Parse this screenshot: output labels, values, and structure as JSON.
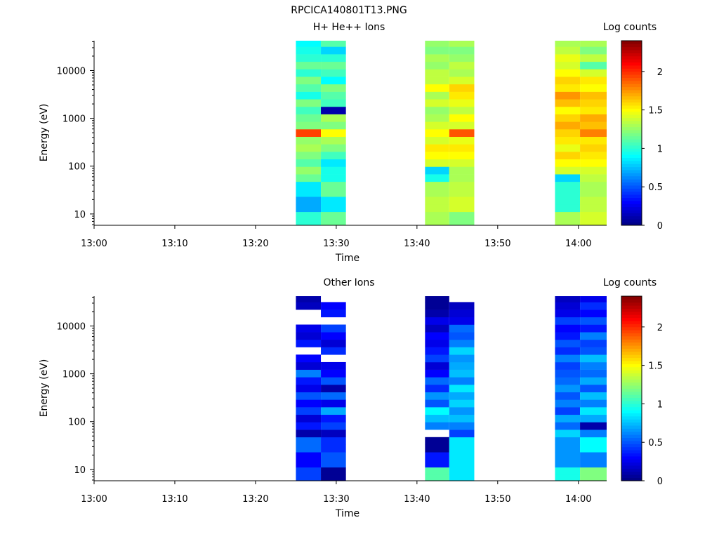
{
  "title": "RPCICA140801T13.PNG",
  "chart_data": [
    {
      "type": "heatmap",
      "title": "H+ He++ Ions",
      "xlabel": "Time",
      "ylabel": "Energy (eV)",
      "x_ticks": [
        "13:00",
        "13:10",
        "13:20",
        "13:30",
        "13:40",
        "13:50",
        "14:00"
      ],
      "x_range": [
        "13:00",
        "14:03.5"
      ],
      "y_scale": "log",
      "y_ticks": [
        "10",
        "100",
        "1000",
        "10000"
      ],
      "y_range": [
        5.8,
        42000
      ],
      "colorbar": {
        "label": "Log counts",
        "range": [
          0,
          2.4
        ],
        "ticks": [
          "0",
          "0.5",
          "1",
          "1.5",
          "2"
        ]
      },
      "blocks": [
        {
          "t_start": "13:25.0",
          "t_end": "13:28.1",
          "energy_rows": [
            6.6,
            9.2,
            13.4,
            19.2,
            27.6,
            39.6,
            56.8,
            81.5,
            117,
            168,
            241,
            346,
            496,
            712,
            1021,
            1466,
            2104,
            3019,
            4333,
            6218,
            8924,
            12807,
            18380,
            26378,
            37857
          ],
          "log_counts": [
            1.0,
            1.0,
            0.7,
            0.7,
            0.85,
            0.85,
            1.15,
            1.25,
            1.1,
            1.2,
            1.3,
            1.25,
            1.95,
            1.2,
            1.15,
            1.05,
            1.2,
            0.95,
            1.1,
            1.2,
            1.0,
            1.15,
            1.0,
            0.95,
            0.9
          ]
        },
        {
          "t_start": "13:28.1",
          "t_end": "13:31.2",
          "energy_rows": [
            6.6,
            9.2,
            13.4,
            19.2,
            27.6,
            39.6,
            56.8,
            81.5,
            117,
            168,
            241,
            346,
            496,
            712,
            1021,
            1466,
            2104,
            3019,
            4333,
            6218,
            8924,
            12807,
            18380,
            26378,
            37857
          ],
          "log_counts": [
            1.15,
            1.15,
            0.85,
            0.85,
            1.15,
            1.15,
            0.95,
            0.95,
            0.85,
            1.05,
            1.2,
            1.3,
            1.5,
            1.2,
            1.3,
            0.1,
            1.05,
            1.1,
            1.2,
            0.9,
            1.05,
            1.15,
            1.0,
            0.8,
            1.1
          ]
        },
        {
          "t_start": "13:41.0",
          "t_end": "13:44.0",
          "energy_rows": [
            6.6,
            9.2,
            13.4,
            19.2,
            27.6,
            39.6,
            56.8,
            81.5,
            117,
            168,
            241,
            346,
            496,
            712,
            1021,
            1466,
            2104,
            3019,
            4333,
            6218,
            8924,
            12807,
            18380,
            26378,
            37857
          ],
          "log_counts": [
            1.3,
            1.3,
            1.35,
            1.35,
            1.3,
            1.3,
            0.95,
            0.8,
            1.4,
            1.5,
            1.55,
            1.4,
            1.5,
            1.4,
            1.3,
            1.25,
            1.4,
            1.3,
            1.5,
            1.35,
            1.35,
            1.25,
            1.3,
            1.2,
            1.25
          ]
        },
        {
          "t_start": "13:44.0",
          "t_end": "13:47.1",
          "energy_rows": [
            6.6,
            9.2,
            13.4,
            19.2,
            27.6,
            39.6,
            56.8,
            81.5,
            117,
            168,
            241,
            346,
            496,
            712,
            1021,
            1466,
            2104,
            3019,
            4333,
            6218,
            8924,
            12807,
            18380,
            26378,
            37857
          ],
          "log_counts": [
            1.2,
            1.2,
            1.4,
            1.4,
            1.35,
            1.35,
            1.3,
            1.3,
            1.4,
            1.5,
            1.55,
            1.45,
            1.9,
            1.4,
            1.5,
            1.35,
            1.45,
            1.55,
            1.6,
            1.4,
            1.3,
            1.35,
            1.25,
            1.2,
            1.3
          ]
        },
        {
          "t_start": "13:57.1",
          "t_end": "14:00.2",
          "energy_rows": [
            6.6,
            9.2,
            13.4,
            19.2,
            27.6,
            39.6,
            56.8,
            81.5,
            117,
            168,
            241,
            346,
            496,
            712,
            1021,
            1466,
            2104,
            3019,
            4333,
            6218,
            8924,
            12807,
            18380,
            26378,
            37857
          ],
          "log_counts": [
            1.3,
            1.3,
            1.0,
            1.0,
            1.0,
            1.0,
            0.8,
            1.4,
            1.5,
            1.6,
            1.45,
            1.55,
            1.6,
            1.7,
            1.6,
            1.5,
            1.65,
            1.75,
            1.55,
            1.6,
            1.5,
            1.4,
            1.45,
            1.35,
            1.3
          ]
        },
        {
          "t_start": "14:00.2",
          "t_end": "14:03.5",
          "energy_rows": [
            6.6,
            9.2,
            13.4,
            19.2,
            27.6,
            39.6,
            56.8,
            81.5,
            117,
            168,
            241,
            346,
            496,
            712,
            1021,
            1466,
            2104,
            3019,
            4333,
            6218,
            8924,
            12807,
            18380,
            26378,
            37857
          ],
          "log_counts": [
            1.4,
            1.4,
            1.35,
            1.35,
            1.3,
            1.3,
            1.35,
            1.4,
            1.5,
            1.55,
            1.6,
            1.55,
            1.8,
            1.65,
            1.7,
            1.55,
            1.6,
            1.65,
            1.5,
            1.55,
            1.4,
            1.1,
            1.35,
            1.2,
            1.3
          ]
        }
      ]
    },
    {
      "type": "heatmap",
      "title": "Other Ions",
      "xlabel": "Time",
      "ylabel": "Energy (eV)",
      "x_ticks": [
        "13:00",
        "13:10",
        "13:20",
        "13:30",
        "13:40",
        "13:50",
        "14:00"
      ],
      "x_range": [
        "13:00",
        "14:03.5"
      ],
      "y_scale": "log",
      "y_ticks": [
        "10",
        "100",
        "1000",
        "10000"
      ],
      "y_range": [
        5.8,
        42000
      ],
      "colorbar": {
        "label": "Log counts",
        "range": [
          0,
          2.4
        ],
        "ticks": [
          "0",
          "0.5",
          "1",
          "1.5",
          "2"
        ]
      },
      "blocks": [
        {
          "t_start": "13:25.0",
          "t_end": "13:28.1",
          "energy_rows": [
            6.6,
            9.2,
            13.4,
            19.2,
            27.6,
            39.6,
            56.8,
            81.5,
            117,
            168,
            241,
            346,
            496,
            712,
            1021,
            1466,
            2104,
            3019,
            4333,
            6218,
            8924,
            12807,
            18380,
            26378,
            37857
          ],
          "log_counts": [
            0.45,
            0.45,
            0.3,
            0.3,
            0.55,
            0.55,
            0.1,
            0.35,
            0.2,
            0.45,
            0.3,
            0.5,
            0.25,
            0.35,
            0.6,
            0.2,
            0.3,
            null,
            0.35,
            0.2,
            0.25,
            null,
            null,
            0.15,
            0.1
          ]
        },
        {
          "t_start": "13:28.1",
          "t_end": "13:31.2",
          "energy_rows": [
            6.6,
            9.2,
            13.4,
            19.2,
            27.6,
            39.6,
            56.8,
            81.5,
            117,
            168,
            241,
            346,
            496,
            712,
            1021,
            1466,
            2104,
            3019,
            4333,
            6218,
            8924,
            12807,
            18380,
            26378,
            37857
          ],
          "log_counts": [
            0.05,
            0.05,
            0.5,
            0.5,
            0.4,
            0.4,
            0.15,
            0.45,
            0.35,
            0.7,
            0.25,
            0.55,
            0.1,
            0.5,
            0.3,
            0.25,
            null,
            0.4,
            0.2,
            0.3,
            0.45,
            null,
            0.35,
            0.3,
            null
          ]
        },
        {
          "t_start": "13:41.0",
          "t_end": "13:44.0",
          "energy_rows": [
            6.6,
            9.2,
            13.4,
            19.2,
            27.6,
            39.6,
            56.8,
            81.5,
            117,
            168,
            241,
            346,
            496,
            712,
            1021,
            1466,
            2104,
            3019,
            4333,
            6218,
            8924,
            12807,
            18380,
            26378,
            37857
          ],
          "log_counts": [
            1.1,
            1.1,
            0.35,
            0.35,
            0.05,
            0.05,
            null,
            0.6,
            0.75,
            0.9,
            0.5,
            0.65,
            0.4,
            0.55,
            0.3,
            0.2,
            0.45,
            0.35,
            0.25,
            0.3,
            0.15,
            0.25,
            0.1,
            0.05,
            0.05
          ]
        },
        {
          "t_start": "13:44.0",
          "t_end": "13:47.1",
          "energy_rows": [
            6.6,
            9.2,
            13.4,
            19.2,
            27.6,
            39.6,
            56.8,
            81.5,
            117,
            168,
            241,
            346,
            496,
            712,
            1021,
            1466,
            2104,
            3019,
            4333,
            6218,
            8924,
            12807,
            18380,
            26378,
            37857
          ],
          "log_counts": [
            0.85,
            0.85,
            0.85,
            0.85,
            0.85,
            0.85,
            0.45,
            0.6,
            0.75,
            0.65,
            0.8,
            0.7,
            0.85,
            0.6,
            0.75,
            0.7,
            0.65,
            0.8,
            0.6,
            0.5,
            0.55,
            0.25,
            0.2,
            0.15,
            null
          ]
        },
        {
          "t_start": "13:57.1",
          "t_end": "14:00.2",
          "energy_rows": [
            6.6,
            9.2,
            13.4,
            19.2,
            27.6,
            39.6,
            56.8,
            81.5,
            117,
            168,
            241,
            346,
            496,
            712,
            1021,
            1466,
            2104,
            3019,
            4333,
            6218,
            8924,
            12807,
            18380,
            26378,
            37857
          ],
          "log_counts": [
            0.95,
            0.95,
            0.65,
            0.65,
            0.65,
            0.65,
            0.8,
            0.55,
            0.7,
            0.45,
            0.6,
            0.5,
            0.65,
            0.55,
            0.5,
            0.45,
            0.6,
            0.4,
            0.5,
            0.35,
            0.3,
            0.45,
            0.25,
            0.2,
            0.15
          ]
        },
        {
          "t_start": "14:00.2",
          "t_end": "14:03.5",
          "energy_rows": [
            6.6,
            9.2,
            13.4,
            19.2,
            27.6,
            39.6,
            56.8,
            81.5,
            117,
            168,
            241,
            346,
            496,
            712,
            1021,
            1466,
            2104,
            3019,
            4333,
            6218,
            8924,
            12807,
            18380,
            26378,
            37857
          ],
          "log_counts": [
            1.2,
            1.2,
            0.6,
            0.6,
            0.9,
            0.9,
            0.6,
            0.1,
            0.7,
            0.85,
            0.6,
            0.75,
            0.5,
            0.7,
            0.55,
            0.6,
            0.75,
            0.5,
            0.45,
            0.6,
            0.35,
            0.5,
            0.3,
            0.4,
            0.25
          ]
        }
      ]
    }
  ]
}
